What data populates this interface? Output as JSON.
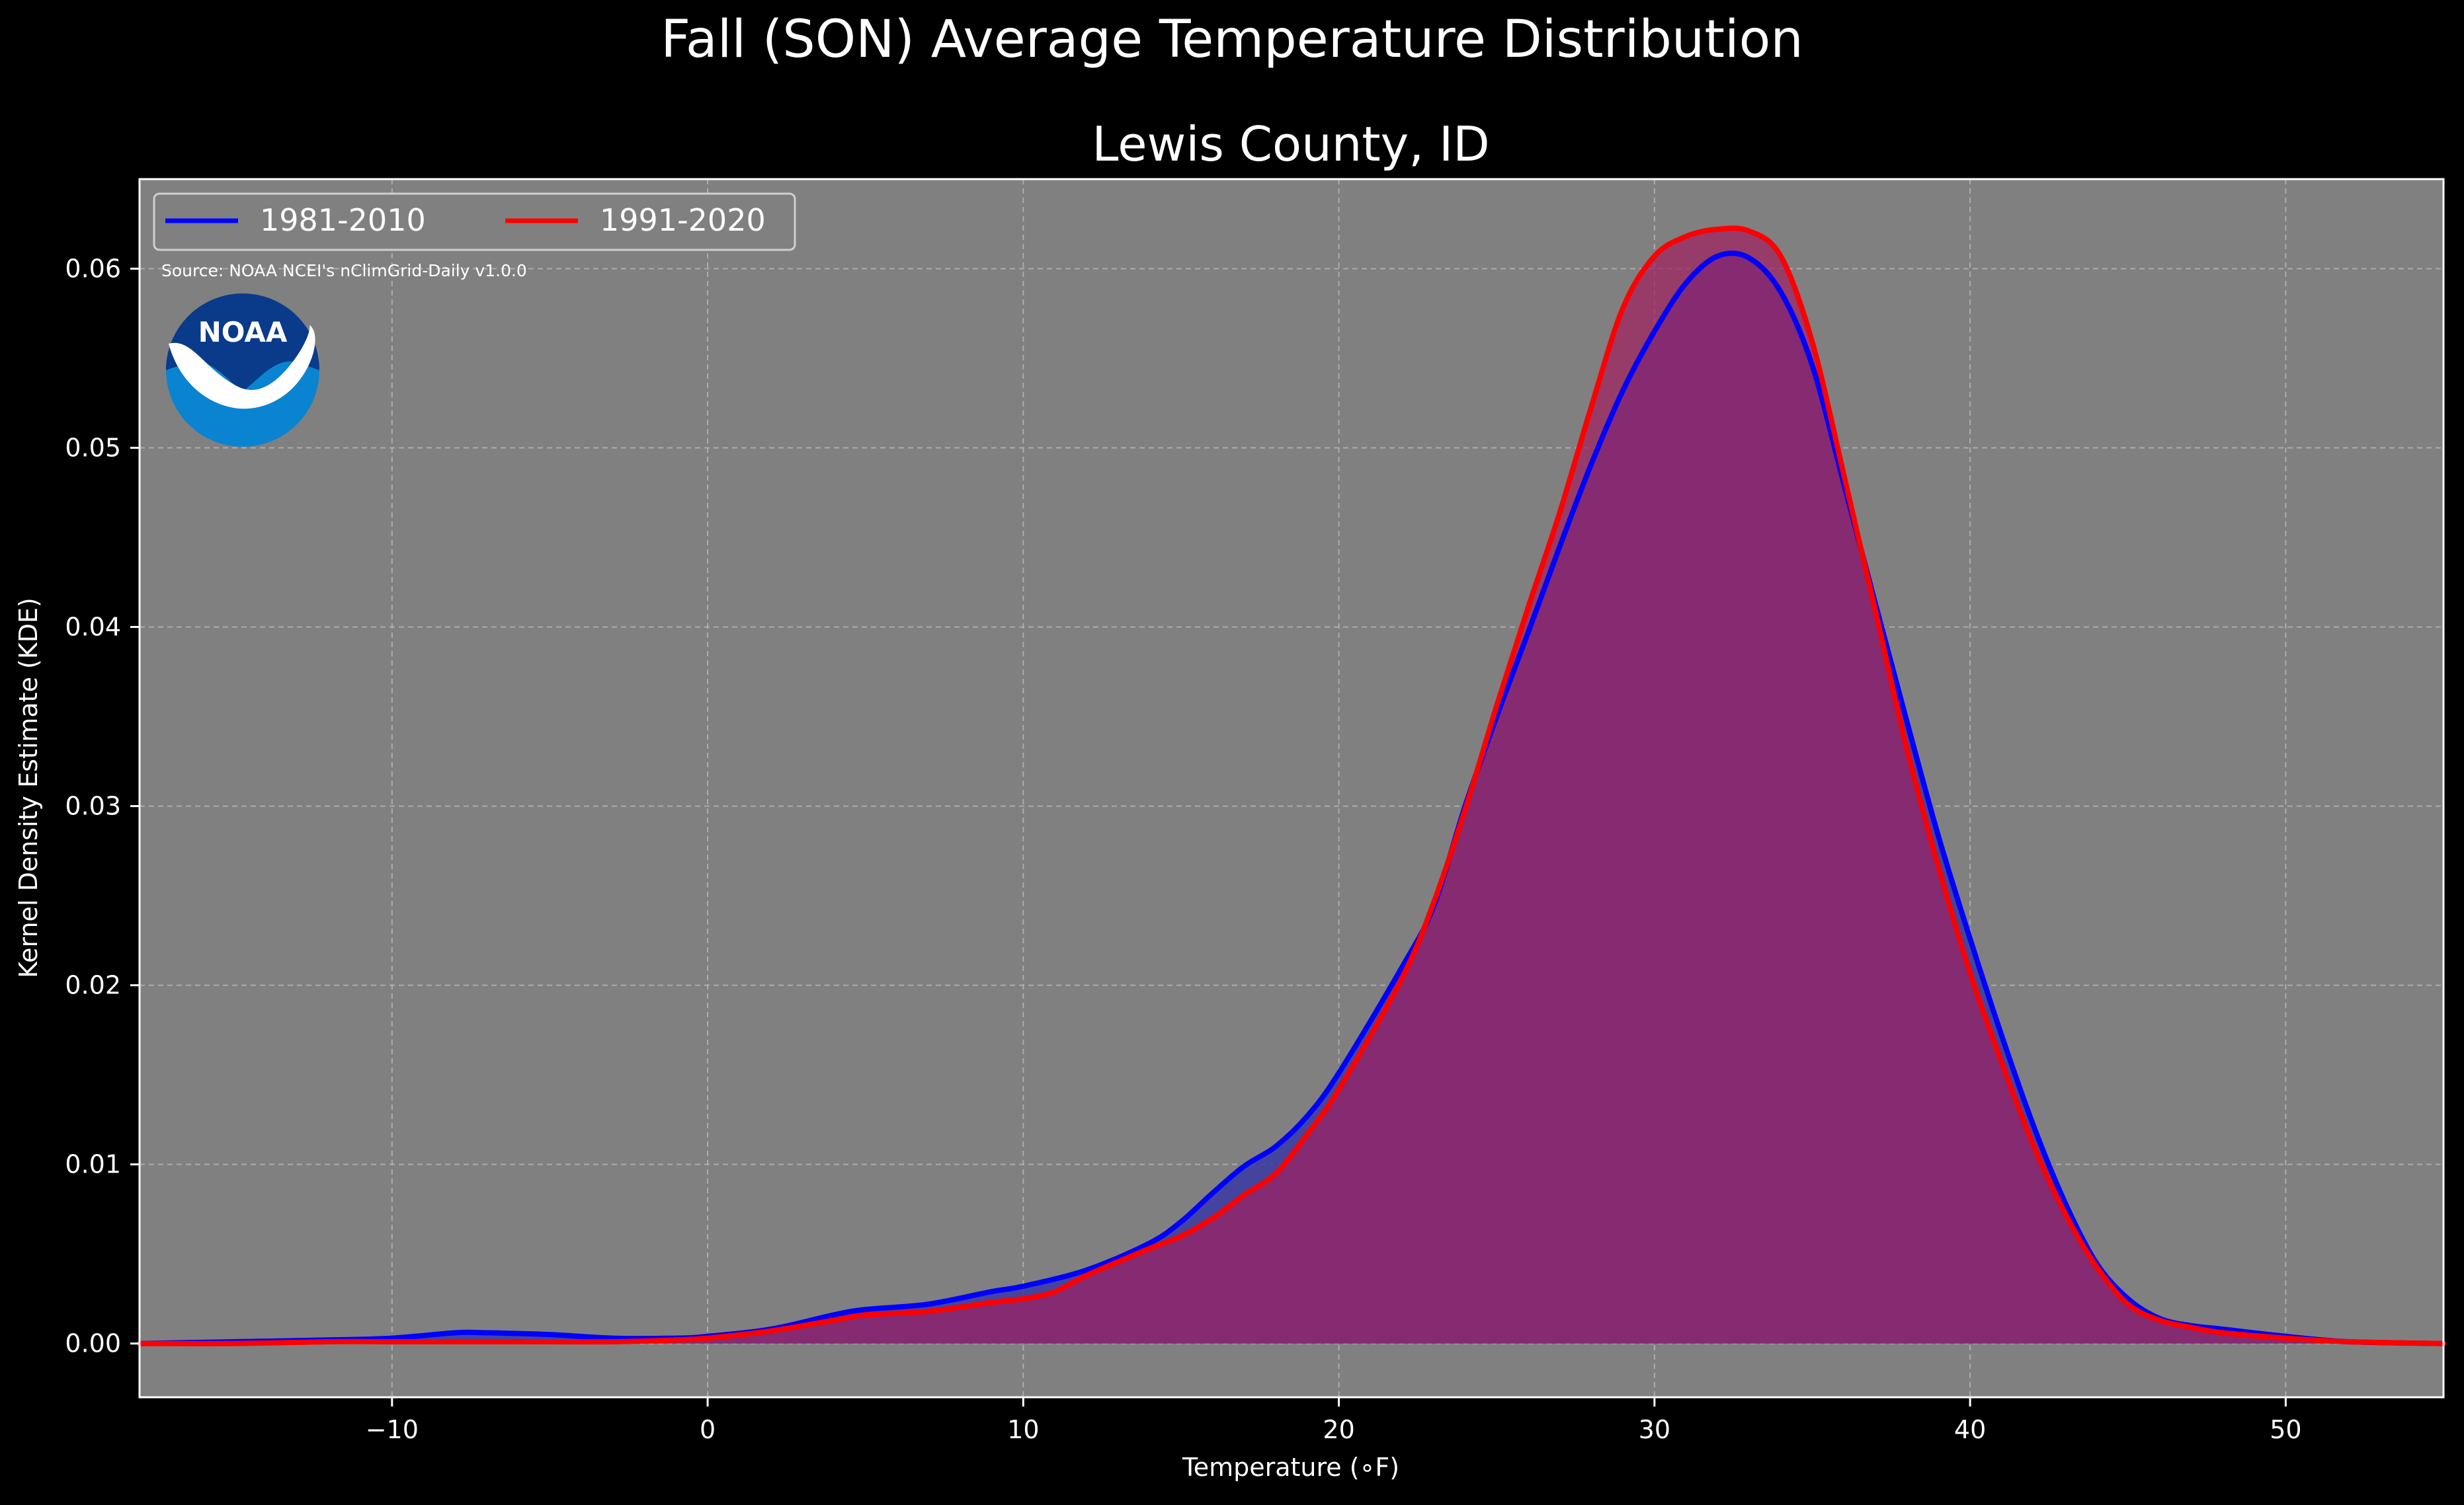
{
  "figure": {
    "suptitle": "Fall (SON) Average Temperature Distribution",
    "title": "Lewis County, ID",
    "source_note": "Source: NOAA NCEI's nClimGrid-Daily v1.0.0",
    "logo_text": "NOAA"
  },
  "colors": {
    "figure_bg": "#000000",
    "axes_bg": "#808080",
    "series_1981": "#0000ff",
    "series_1991": "#ff0000",
    "fill_1981": "#3a3aa3",
    "fill_1991": "#a0205f",
    "grid": "#b8b8b8",
    "logo_top": "#0a3a8a",
    "logo_bottom": "#0a84d0"
  },
  "chart_data": {
    "type": "area",
    "xlabel": "Temperature ($^\\circ$F)",
    "xlabel_display": "Temperature (∘F)",
    "ylabel": "Kernel Density Estimate (KDE)",
    "xlim": [
      -18,
      55
    ],
    "ylim": [
      -0.003,
      0.065
    ],
    "xticks": [
      -10,
      0,
      10,
      20,
      30,
      40,
      50
    ],
    "xtick_labels": [
      "−10",
      "0",
      "10",
      "20",
      "30",
      "40",
      "50"
    ],
    "yticks": [
      0.0,
      0.01,
      0.02,
      0.03,
      0.04,
      0.05,
      0.06
    ],
    "ytick_labels": [
      "0.00",
      "0.01",
      "0.02",
      "0.03",
      "0.04",
      "0.05",
      "0.06"
    ],
    "grid": true,
    "legend_position": "top-left",
    "series": [
      {
        "name": "1981-2010",
        "color": "#0000ff",
        "points": [
          [
            -18,
            0.0
          ],
          [
            -15,
            0.0001
          ],
          [
            -12,
            0.0002
          ],
          [
            -10,
            0.0003
          ],
          [
            -8,
            0.0006
          ],
          [
            -7,
            0.0006
          ],
          [
            -5,
            0.0005
          ],
          [
            -3,
            0.0003
          ],
          [
            -1,
            0.0003
          ],
          [
            0,
            0.0004
          ],
          [
            2,
            0.0008
          ],
          [
            4,
            0.0016
          ],
          [
            5,
            0.0019
          ],
          [
            7,
            0.0022
          ],
          [
            9,
            0.0029
          ],
          [
            10,
            0.0032
          ],
          [
            12,
            0.0041
          ],
          [
            14,
            0.0056
          ],
          [
            15,
            0.0068
          ],
          [
            16,
            0.0084
          ],
          [
            17,
            0.0099
          ],
          [
            18,
            0.011
          ],
          [
            19,
            0.0127
          ],
          [
            20,
            0.0151
          ],
          [
            22,
            0.021
          ],
          [
            23,
            0.0244
          ],
          [
            24,
            0.03
          ],
          [
            25,
            0.035
          ],
          [
            26,
            0.0397
          ],
          [
            27,
            0.0445
          ],
          [
            28,
            0.0491
          ],
          [
            29,
            0.0532
          ],
          [
            30,
            0.0565
          ],
          [
            31,
            0.0592
          ],
          [
            32,
            0.0607
          ],
          [
            33,
            0.0606
          ],
          [
            34,
            0.0587
          ],
          [
            35,
            0.0546
          ],
          [
            36,
            0.048
          ],
          [
            37,
            0.0413
          ],
          [
            38,
            0.0347
          ],
          [
            39,
            0.0283
          ],
          [
            40,
            0.0226
          ],
          [
            41,
            0.0172
          ],
          [
            42,
            0.0122
          ],
          [
            43,
            0.0079
          ],
          [
            44,
            0.0045
          ],
          [
            45,
            0.0025
          ],
          [
            46,
            0.0014
          ],
          [
            47,
            0.001
          ],
          [
            48,
            0.0008
          ],
          [
            50,
            0.0004
          ],
          [
            52,
            0.0001
          ],
          [
            55,
            0.0
          ]
        ]
      },
      {
        "name": "1991-2020",
        "color": "#ff0000",
        "points": [
          [
            -18,
            0.0
          ],
          [
            -15,
            0.0
          ],
          [
            -12,
            0.0001
          ],
          [
            -10,
            0.0001
          ],
          [
            -8,
            0.0001
          ],
          [
            -5,
            0.0001
          ],
          [
            -3,
            0.0001
          ],
          [
            -1,
            0.0002
          ],
          [
            0,
            0.0003
          ],
          [
            2,
            0.0007
          ],
          [
            4,
            0.0013
          ],
          [
            5,
            0.0016
          ],
          [
            7,
            0.0018
          ],
          [
            9,
            0.0023
          ],
          [
            10,
            0.0025
          ],
          [
            11,
            0.0029
          ],
          [
            12,
            0.0038
          ],
          [
            14,
            0.0053
          ],
          [
            15,
            0.006
          ],
          [
            16,
            0.007
          ],
          [
            17,
            0.0083
          ],
          [
            18,
            0.0095
          ],
          [
            19,
            0.0117
          ],
          [
            20,
            0.0142
          ],
          [
            22,
            0.0204
          ],
          [
            23,
            0.0246
          ],
          [
            24,
            0.0298
          ],
          [
            25,
            0.0356
          ],
          [
            26,
            0.0411
          ],
          [
            27,
            0.0464
          ],
          [
            28,
            0.0523
          ],
          [
            29,
            0.0578
          ],
          [
            30,
            0.0607
          ],
          [
            31,
            0.0618
          ],
          [
            32,
            0.0622
          ],
          [
            33,
            0.0621
          ],
          [
            34,
            0.0607
          ],
          [
            35,
            0.0559
          ],
          [
            36,
            0.0485
          ],
          [
            37,
            0.0409
          ],
          [
            38,
            0.0332
          ],
          [
            39,
            0.0266
          ],
          [
            40,
            0.0207
          ],
          [
            41,
            0.0157
          ],
          [
            42,
            0.0111
          ],
          [
            43,
            0.0073
          ],
          [
            44,
            0.0043
          ],
          [
            45,
            0.0022
          ],
          [
            46,
            0.0013
          ],
          [
            47,
            0.0009
          ],
          [
            48,
            0.0006
          ],
          [
            50,
            0.0003
          ],
          [
            52,
            0.0001
          ],
          [
            55,
            0.0
          ]
        ]
      }
    ]
  }
}
